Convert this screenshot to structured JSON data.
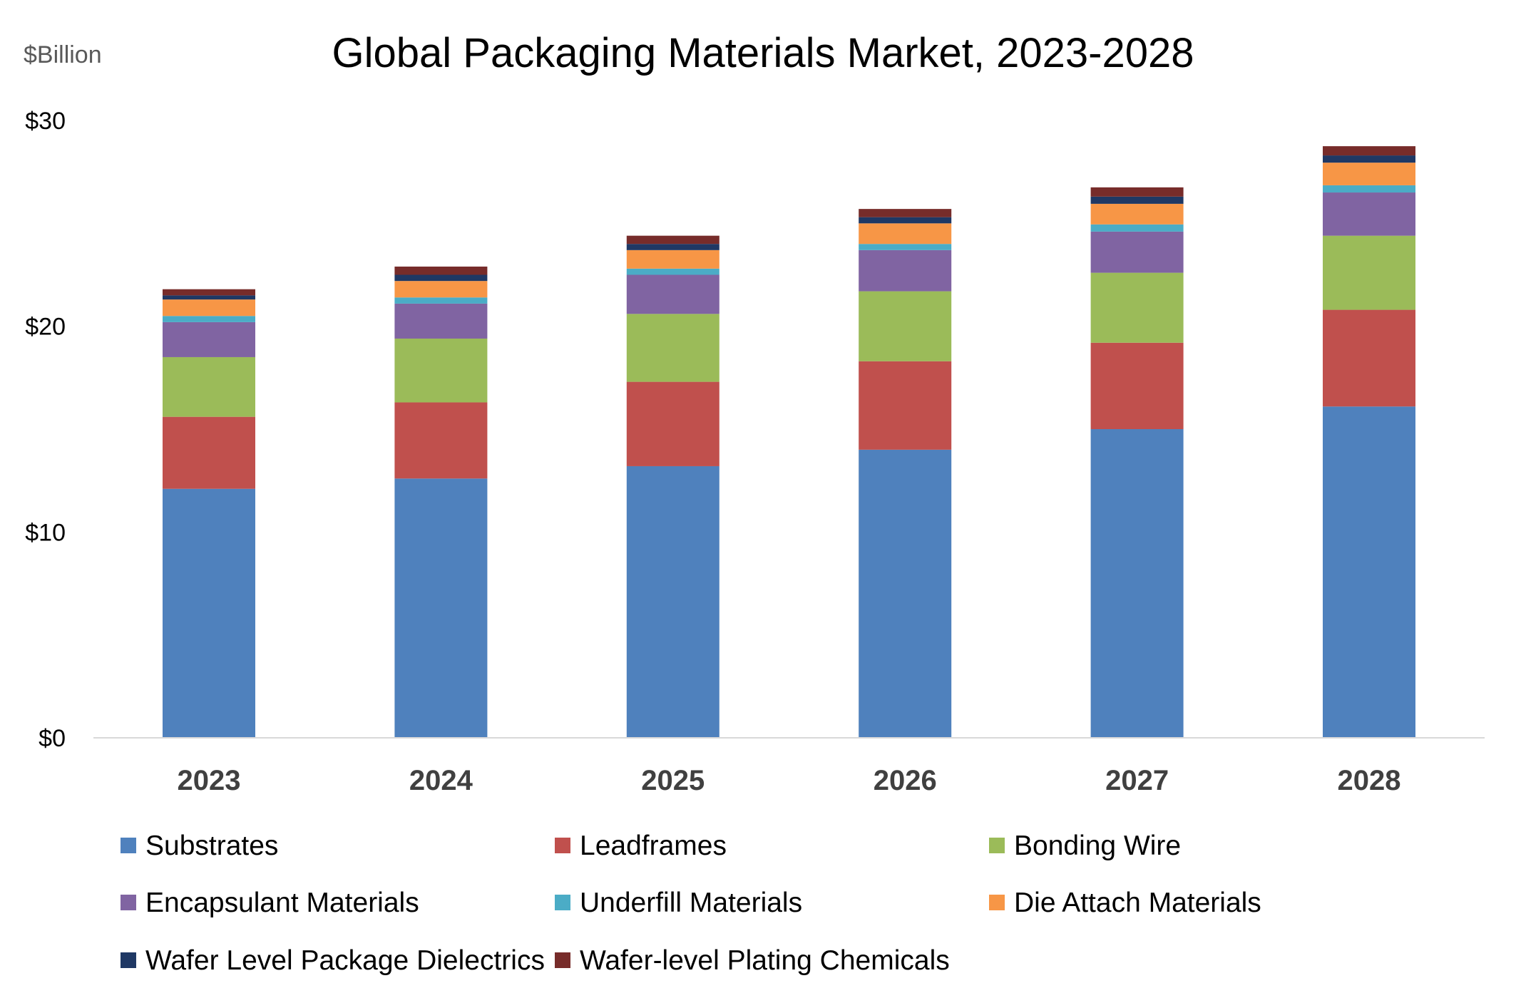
{
  "chart_data": {
    "type": "bar",
    "stacked": true,
    "title": "Global Packaging Materials Market, 2023-2028",
    "unit_label": "$Billion",
    "xlabel": "",
    "ylabel": "",
    "ylim": [
      0,
      30
    ],
    "yticks": [
      {
        "value": 0,
        "label": "$0"
      },
      {
        "value": 10,
        "label": "$10"
      },
      {
        "value": 20,
        "label": "$20"
      },
      {
        "value": 30,
        "label": "$30"
      }
    ],
    "grid": false,
    "legend_position": "bottom",
    "categories": [
      "2023",
      "2024",
      "2025",
      "2026",
      "2027",
      "2028"
    ],
    "series": [
      {
        "name": "Substrates",
        "color": "#4F81BD",
        "values": [
          12.1,
          12.6,
          13.2,
          14.0,
          15.0,
          16.1
        ]
      },
      {
        "name": "Leadframes",
        "color": "#C0504D",
        "values": [
          3.5,
          3.7,
          4.1,
          4.3,
          4.2,
          4.7
        ]
      },
      {
        "name": "Bonding Wire",
        "color": "#9BBB59",
        "values": [
          2.9,
          3.1,
          3.3,
          3.4,
          3.4,
          3.6
        ]
      },
      {
        "name": "Encapsulant Materials",
        "color": "#8064A2",
        "values": [
          1.7,
          1.7,
          1.9,
          2.0,
          2.0,
          2.1
        ]
      },
      {
        "name": "Underfill Materials",
        "color": "#4BACC6",
        "values": [
          0.3,
          0.3,
          0.3,
          0.3,
          0.35,
          0.35
        ]
      },
      {
        "name": "Die Attach Materials",
        "color": "#F79646",
        "values": [
          0.8,
          0.8,
          0.9,
          1.0,
          1.0,
          1.1
        ]
      },
      {
        "name": "Wafer Level Package Dielectrics",
        "color": "#1F3864",
        "values": [
          0.2,
          0.3,
          0.3,
          0.3,
          0.35,
          0.35
        ]
      },
      {
        "name": "Wafer-level Plating Chemicals",
        "color": "#772C2A",
        "values": [
          0.3,
          0.4,
          0.4,
          0.4,
          0.45,
          0.45
        ]
      }
    ],
    "axis_color": "#D9D9D9"
  }
}
